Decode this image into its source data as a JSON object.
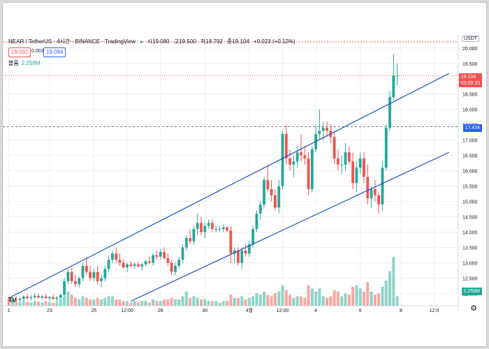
{
  "header": {
    "symbol": "NEAR / TetherUS · 4시간 · BINANCE · TradingView",
    "live_dot": "●",
    "open_label": "시",
    "open": "19.080",
    "high_label": "고",
    "high": "19.500",
    "low_label": "저",
    "low": "18.792",
    "close_label": "종",
    "close": "19.104",
    "change": "+0.023 (+0.12%)",
    "bid": "19.091",
    "spread": "0.003",
    "ask": "19.094",
    "volume_label": "볼륨",
    "volume": "2.259M",
    "currency": "USDT",
    "logo": "TV"
  },
  "colors": {
    "up": "#26a69a",
    "down": "#ef5350",
    "channel": "#1e4fbf",
    "vol_up": "#8fd3c8",
    "vol_down": "#f7a8a5",
    "current_price": "#ef5350",
    "level": "#2962ff"
  },
  "current_price_label": "19.104",
  "countdown": "03:09:33",
  "level_label": "17.434",
  "volume_tag": "2.259M",
  "chart_data": {
    "type": "candlestick",
    "ylim": [
      11.6,
      20.2
    ],
    "y_ticks": [
      12.0,
      12.5,
      13.0,
      13.5,
      14.0,
      14.5,
      15.0,
      15.5,
      16.0,
      16.5,
      17.0,
      17.5,
      18.0,
      18.5,
      19.0,
      19.5,
      20.0
    ],
    "x_ticks": [
      {
        "label": "1",
        "i": 0
      },
      {
        "label": "23",
        "i": 11
      },
      {
        "label": "25",
        "i": 23
      },
      {
        "label": "12:00",
        "i": 32
      },
      {
        "label": "28",
        "i": 41
      },
      {
        "label": "30",
        "i": 53
      },
      {
        "label": "4월",
        "i": 65
      },
      {
        "label": "12:00",
        "i": 74
      },
      {
        "label": "4",
        "i": 83
      },
      {
        "label": "6",
        "i": 95
      },
      {
        "label": "8",
        "i": 106
      },
      {
        "label": "12:0",
        "i": 115
      }
    ],
    "candles": [
      [
        11.8,
        11.9,
        11.65,
        11.75,
        0.2
      ],
      [
        11.75,
        11.85,
        11.7,
        11.8,
        0.3
      ],
      [
        11.8,
        11.9,
        11.72,
        11.78,
        0.25
      ],
      [
        11.78,
        11.88,
        11.7,
        11.82,
        0.2
      ],
      [
        11.82,
        11.95,
        11.75,
        11.9,
        0.3
      ],
      [
        11.9,
        11.98,
        11.8,
        11.85,
        0.25
      ],
      [
        11.85,
        11.95,
        11.78,
        11.88,
        0.2
      ],
      [
        11.88,
        12.0,
        11.8,
        11.92,
        0.3
      ],
      [
        11.92,
        12.0,
        11.84,
        11.86,
        0.25
      ],
      [
        11.86,
        11.95,
        11.8,
        11.9,
        0.2
      ],
      [
        11.9,
        11.98,
        11.82,
        11.84,
        0.3
      ],
      [
        11.84,
        11.92,
        11.76,
        11.88,
        0.25
      ],
      [
        11.88,
        11.96,
        11.8,
        11.82,
        0.2
      ],
      [
        11.82,
        11.92,
        11.74,
        11.86,
        0.25
      ],
      [
        11.86,
        12.0,
        11.8,
        11.95,
        0.4
      ],
      [
        11.95,
        12.5,
        11.9,
        12.4,
        0.6
      ],
      [
        12.4,
        12.8,
        12.3,
        12.7,
        0.9
      ],
      [
        12.7,
        12.85,
        12.3,
        12.4,
        0.7
      ],
      [
        12.4,
        12.6,
        12.2,
        12.3,
        0.5
      ],
      [
        12.3,
        12.55,
        12.2,
        12.5,
        0.4
      ],
      [
        12.5,
        13.0,
        12.4,
        12.9,
        0.6
      ],
      [
        12.9,
        13.2,
        12.6,
        12.7,
        0.5
      ],
      [
        12.7,
        12.9,
        12.4,
        12.5,
        0.4
      ],
      [
        12.5,
        12.8,
        12.4,
        12.7,
        0.4
      ],
      [
        12.7,
        12.9,
        12.3,
        12.4,
        0.5
      ],
      [
        12.4,
        12.6,
        12.2,
        12.5,
        0.4
      ],
      [
        12.5,
        12.9,
        12.4,
        12.8,
        0.5
      ],
      [
        12.8,
        13.2,
        12.7,
        13.1,
        0.6
      ],
      [
        13.1,
        13.4,
        13.0,
        13.3,
        0.6
      ],
      [
        13.3,
        13.5,
        13.0,
        13.1,
        0.4
      ],
      [
        13.1,
        13.3,
        12.9,
        13.0,
        0.4
      ],
      [
        13.0,
        13.1,
        12.8,
        12.85,
        0.3
      ],
      [
        12.85,
        13.0,
        12.7,
        12.95,
        0.3
      ],
      [
        12.95,
        13.05,
        12.85,
        12.9,
        0.2
      ],
      [
        12.9,
        13.0,
        12.8,
        12.95,
        0.3
      ],
      [
        12.95,
        13.05,
        12.85,
        12.88,
        0.2
      ],
      [
        12.88,
        13.0,
        12.75,
        12.95,
        0.3
      ],
      [
        12.95,
        13.1,
        12.9,
        13.05,
        0.3
      ],
      [
        13.05,
        13.2,
        12.95,
        13.0,
        0.2
      ],
      [
        13.0,
        13.3,
        12.9,
        13.25,
        0.4
      ],
      [
        13.25,
        13.4,
        13.1,
        13.2,
        0.3
      ],
      [
        13.2,
        13.45,
        13.1,
        13.35,
        0.3
      ],
      [
        13.35,
        13.5,
        13.1,
        13.15,
        0.4
      ],
      [
        13.15,
        13.3,
        12.9,
        13.0,
        0.4
      ],
      [
        13.0,
        13.1,
        12.6,
        12.7,
        0.5
      ],
      [
        12.7,
        13.0,
        12.6,
        12.9,
        0.4
      ],
      [
        12.9,
        13.2,
        12.8,
        13.1,
        0.4
      ],
      [
        13.1,
        13.6,
        13.0,
        13.5,
        0.6
      ],
      [
        13.5,
        13.9,
        13.4,
        13.8,
        0.9
      ],
      [
        13.8,
        14.1,
        13.6,
        13.7,
        0.5
      ],
      [
        13.7,
        14.2,
        13.6,
        14.1,
        0.6
      ],
      [
        14.1,
        14.6,
        13.9,
        14.3,
        0.5
      ],
      [
        14.3,
        14.5,
        13.9,
        14.0,
        0.4
      ],
      [
        14.0,
        14.3,
        13.8,
        14.2,
        0.4
      ],
      [
        14.2,
        14.4,
        14.1,
        14.3,
        0.3
      ],
      [
        14.3,
        14.4,
        14.0,
        14.1,
        0.3
      ],
      [
        14.1,
        14.2,
        14.0,
        14.1,
        0.3
      ],
      [
        14.1,
        14.2,
        14.0,
        14.1,
        0.2
      ],
      [
        14.1,
        14.25,
        14.0,
        14.15,
        0.3
      ],
      [
        14.15,
        14.2,
        14.0,
        14.05,
        0.3
      ],
      [
        14.05,
        14.2,
        13.0,
        13.3,
        0.7
      ],
      [
        13.3,
        13.5,
        13.0,
        13.4,
        0.5
      ],
      [
        13.4,
        13.5,
        12.9,
        13.0,
        0.5
      ],
      [
        13.0,
        13.5,
        12.8,
        13.4,
        0.6
      ],
      [
        13.4,
        13.6,
        13.2,
        13.3,
        0.4
      ],
      [
        13.3,
        13.7,
        13.2,
        13.6,
        0.5
      ],
      [
        13.6,
        14.2,
        13.5,
        14.1,
        0.6
      ],
      [
        14.1,
        14.7,
        14.0,
        14.6,
        0.8
      ],
      [
        14.6,
        15.0,
        14.4,
        14.9,
        0.7
      ],
      [
        14.9,
        15.8,
        14.8,
        15.7,
        0.9
      ],
      [
        15.7,
        16.2,
        15.3,
        15.4,
        0.7
      ],
      [
        15.4,
        15.7,
        15.0,
        15.2,
        0.6
      ],
      [
        15.2,
        15.4,
        14.7,
        14.8,
        0.8
      ],
      [
        14.8,
        15.7,
        14.6,
        15.5,
        0.9
      ],
      [
        15.5,
        17.3,
        15.4,
        17.2,
        1.3
      ],
      [
        17.2,
        17.5,
        16.2,
        16.4,
        1.0
      ],
      [
        16.4,
        16.7,
        16.0,
        16.2,
        0.7
      ],
      [
        16.2,
        16.5,
        15.8,
        16.3,
        0.5
      ],
      [
        16.3,
        16.8,
        16.1,
        16.6,
        0.6
      ],
      [
        16.6,
        17.2,
        16.3,
        16.5,
        0.6
      ],
      [
        16.5,
        16.8,
        16.2,
        16.4,
        0.5
      ],
      [
        16.4,
        16.6,
        15.2,
        15.4,
        1.3
      ],
      [
        15.4,
        16.8,
        15.3,
        16.7,
        1.1
      ],
      [
        16.7,
        17.5,
        16.6,
        17.2,
        0.9
      ],
      [
        17.2,
        18.0,
        17.0,
        17.3,
        1.1
      ],
      [
        17.3,
        17.6,
        17.0,
        17.4,
        0.6
      ],
      [
        17.4,
        17.6,
        17.1,
        17.3,
        0.5
      ],
      [
        17.3,
        17.5,
        16.9,
        17.1,
        0.6
      ],
      [
        17.1,
        17.3,
        16.2,
        16.4,
        1.0
      ],
      [
        16.4,
        16.7,
        16.0,
        16.2,
        0.9
      ],
      [
        16.2,
        16.5,
        15.9,
        16.2,
        0.6
      ],
      [
        16.2,
        16.9,
        16.0,
        16.6,
        0.8
      ],
      [
        16.6,
        16.8,
        16.2,
        16.3,
        0.7
      ],
      [
        16.3,
        16.6,
        15.4,
        15.6,
        1.2
      ],
      [
        15.6,
        16.3,
        15.3,
        16.1,
        1.3
      ],
      [
        16.1,
        16.6,
        15.9,
        16.4,
        1.1
      ],
      [
        16.4,
        16.6,
        15.6,
        15.8,
        0.9
      ],
      [
        15.8,
        16.2,
        14.9,
        15.1,
        1.5
      ],
      [
        15.1,
        15.5,
        14.8,
        15.4,
        0.9
      ],
      [
        15.4,
        15.7,
        15.0,
        15.2,
        0.7
      ],
      [
        15.2,
        15.3,
        14.6,
        14.9,
        0.8
      ],
      [
        14.9,
        16.3,
        14.7,
        16.1,
        1.2
      ],
      [
        16.1,
        17.5,
        16.0,
        17.4,
        1.6
      ],
      [
        17.4,
        18.6,
        17.3,
        18.4,
        2.2
      ],
      [
        18.4,
        19.8,
        18.3,
        19.1,
        3.1
      ],
      [
        19.08,
        19.5,
        18.79,
        19.1,
        0.6
      ]
    ],
    "channel_upper": [
      [
        0,
        11.85
      ],
      [
        119,
        19.17
      ]
    ],
    "channel_lower": [
      [
        33,
        11.75
      ],
      [
        119,
        16.6
      ]
    ],
    "current_price": 19.104,
    "level": 17.434,
    "top_level": 20.2,
    "volume_ref": 4.0
  }
}
